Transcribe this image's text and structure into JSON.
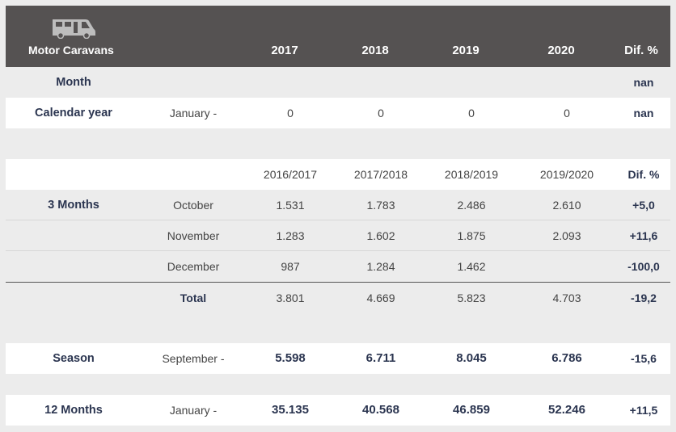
{
  "header": {
    "icon": "camper-van-icon",
    "title": "Motor Caravans",
    "cols": [
      "2017",
      "2018",
      "2019",
      "2020",
      "Dif. %"
    ]
  },
  "month_row": {
    "label": "Month",
    "dif": "nan"
  },
  "calendar_row": {
    "label": "Calendar year",
    "month": "January -",
    "v": [
      "0",
      "0",
      "0",
      "0"
    ],
    "dif": "nan"
  },
  "season_header": {
    "cols": [
      "2016/2017",
      "2017/2018",
      "2018/2019",
      "2019/2020",
      "Dif. %"
    ]
  },
  "three_months": {
    "label": "3 Months",
    "rows": [
      {
        "month": "October",
        "v": [
          "1.531",
          "1.783",
          "2.486",
          "2.610"
        ],
        "dif": "+5,0"
      },
      {
        "month": "November",
        "v": [
          "1.283",
          "1.602",
          "1.875",
          "2.093"
        ],
        "dif": "+11,6"
      },
      {
        "month": "December",
        "v": [
          "987",
          "1.284",
          "1.462",
          ""
        ],
        "dif": "-100,0"
      }
    ],
    "total": {
      "label": "Total",
      "v": [
        "3.801",
        "4.669",
        "5.823",
        "4.703"
      ],
      "dif": "-19,2"
    }
  },
  "season_row": {
    "label": "Season",
    "month": "September -",
    "v": [
      "5.598",
      "6.711",
      "8.045",
      "6.786"
    ],
    "dif": "-15,6"
  },
  "twelve_row": {
    "label": "12 Months",
    "month": "January -",
    "v": [
      "35.135",
      "40.568",
      "46.859",
      "52.246"
    ],
    "dif": "+11,5"
  }
}
